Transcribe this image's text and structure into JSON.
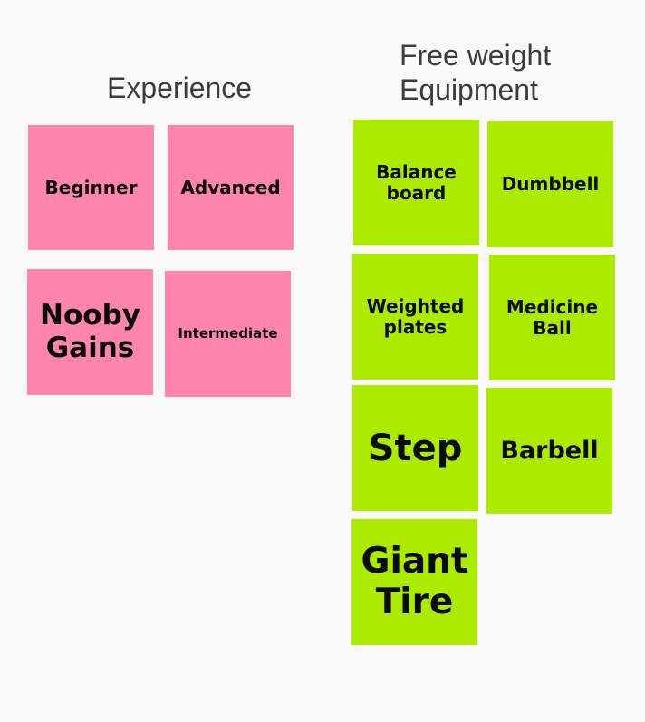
{
  "sections": {
    "experience": {
      "title": "Experience",
      "notes": [
        "Beginner",
        "Advanced",
        "Nooby Gains",
        "Intermediate"
      ]
    },
    "equipment": {
      "title": "Free weight\nEquipment",
      "notes": [
        "Balance board",
        "Dumbbell",
        "Weighted plates",
        "Medicine Ball",
        "Step",
        "Barbell",
        "Giant Tire"
      ]
    }
  },
  "colors": {
    "pink": "#ff85ac",
    "green": "#acea00",
    "background": "#f9f9f9"
  }
}
